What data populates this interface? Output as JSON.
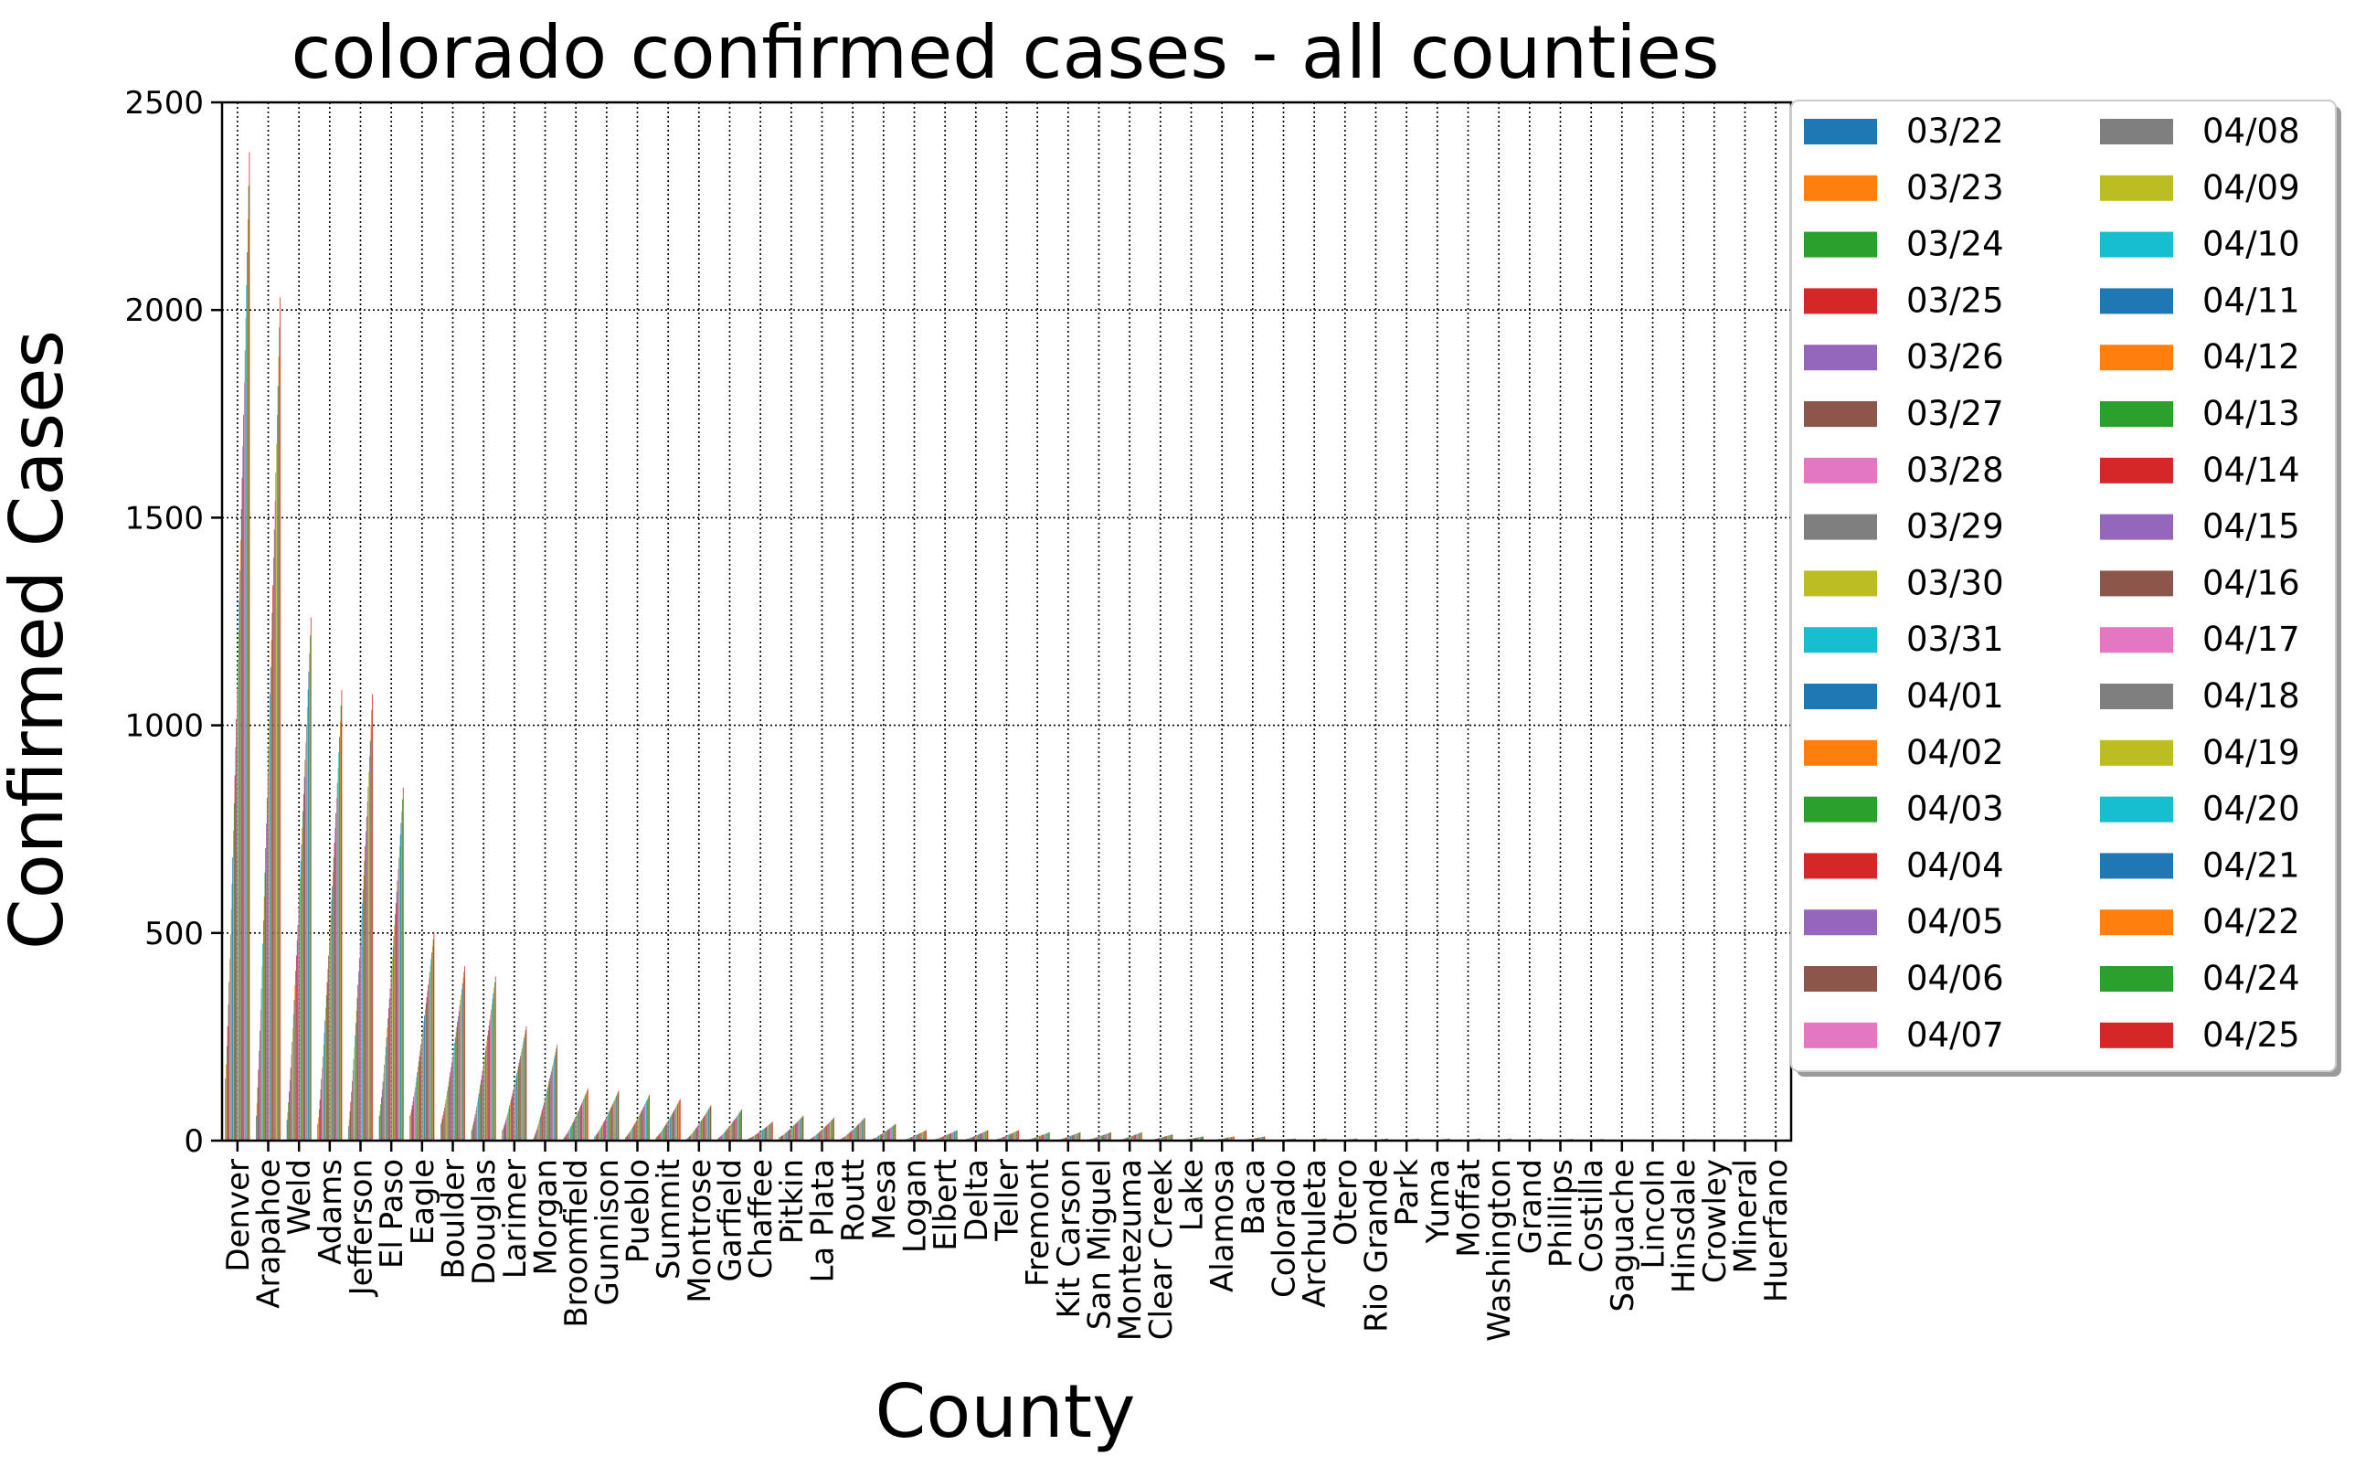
{
  "chart_data": {
    "type": "bar",
    "title": "colorado confirmed cases - all counties",
    "xlabel": "County",
    "ylabel": "Confirmed Cases",
    "ylim": [
      0,
      2500
    ],
    "yticks": [
      0,
      500,
      1000,
      1500,
      2000,
      2500
    ],
    "ytick_labels": [
      "0",
      "500",
      "1000",
      "1500",
      "2000",
      "2500"
    ],
    "grid": true,
    "legend_position": "right, outside plot, 2 columns",
    "categories": [
      "Denver",
      "Arapahoe",
      "Weld",
      "Adams",
      "Jefferson",
      "El Paso",
      "Eagle",
      "Boulder",
      "Douglas",
      "Larimer",
      "Morgan",
      "Broomfield",
      "Gunnison",
      "Pueblo",
      "Summit",
      "Montrose",
      "Garfield",
      "Chaffee",
      "Pitkin",
      "La Plata",
      "Routt",
      "Mesa",
      "Logan",
      "Elbert",
      "Delta",
      "Teller",
      "Fremont",
      "Kit Carson",
      "San Miguel",
      "Montezuma",
      "Clear Creek",
      "Lake",
      "Alamosa",
      "Baca",
      "Colorado",
      "Archuleta",
      "Otero",
      "Rio Grande",
      "Park",
      "Yuma",
      "Moffat",
      "Washington",
      "Grand",
      "Phillips",
      "Costilla",
      "Saguache",
      "Lincoln",
      "Hinsdale",
      "Crowley",
      "Mineral",
      "Huerfano"
    ],
    "dates": [
      "03/22",
      "03/23",
      "03/24",
      "03/25",
      "03/26",
      "03/27",
      "03/28",
      "03/29",
      "03/30",
      "03/31",
      "04/01",
      "04/02",
      "04/03",
      "04/04",
      "04/05",
      "04/06",
      "04/07",
      "04/08",
      "04/09",
      "04/10",
      "04/11",
      "04/12",
      "04/13",
      "04/14",
      "04/15",
      "04/16",
      "04/17",
      "04/18",
      "04/19",
      "04/20",
      "04/21",
      "04/22",
      "04/24",
      "04/25"
    ],
    "series_colors": [
      "#1f77b4",
      "#ff7f0e",
      "#2ca02c",
      "#d62728",
      "#9467bd",
      "#8c564b",
      "#e377c2",
      "#7f7f7f",
      "#bcbd22",
      "#17becf",
      "#1f77b4",
      "#ff7f0e",
      "#2ca02c",
      "#d62728",
      "#9467bd",
      "#8c564b",
      "#e377c2",
      "#7f7f7f",
      "#bcbd22",
      "#17becf",
      "#1f77b4",
      "#ff7f0e",
      "#2ca02c",
      "#d62728",
      "#9467bd",
      "#8c564b",
      "#e377c2",
      "#7f7f7f",
      "#bcbd22",
      "#17becf",
      "#1f77b4",
      "#ff7f0e",
      "#2ca02c",
      "#d62728"
    ],
    "start_values": [
      150,
      60,
      50,
      40,
      35,
      60,
      60,
      40,
      25,
      25,
      4,
      7,
      10,
      8,
      8,
      5,
      5,
      5,
      8,
      4,
      4,
      3,
      1,
      2,
      2,
      2,
      1,
      1,
      2,
      1,
      1,
      1,
      1,
      1,
      1,
      1,
      0,
      0,
      0,
      0,
      0,
      0,
      0,
      0,
      0,
      0,
      0,
      0,
      0,
      0,
      0
    ],
    "final_values": [
      2380,
      2030,
      1260,
      1085,
      1075,
      850,
      500,
      420,
      395,
      275,
      230,
      125,
      120,
      110,
      100,
      85,
      75,
      45,
      60,
      55,
      55,
      40,
      25,
      25,
      25,
      25,
      20,
      20,
      20,
      20,
      15,
      10,
      10,
      10,
      5,
      5,
      5,
      5,
      5,
      5,
      5,
      5,
      4,
      4,
      4,
      3,
      3,
      3,
      3,
      3,
      3
    ]
  }
}
